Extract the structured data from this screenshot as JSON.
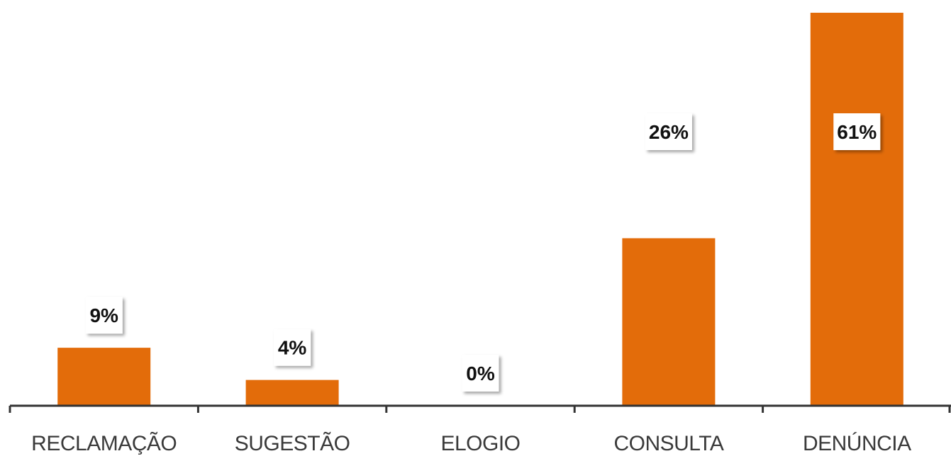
{
  "chart_data": {
    "type": "bar",
    "categories": [
      "RECLAMAÇÃO",
      "SUGESTÃO",
      "ELOGIO",
      "CONSULTA",
      "DENÚNCIA"
    ],
    "values": [
      9,
      4,
      0,
      26,
      61
    ],
    "data_labels": [
      "9%",
      "4%",
      "0%",
      "26%",
      "61%"
    ],
    "ylim": [
      0,
      61
    ],
    "grid": false,
    "title": "",
    "xlabel": "",
    "ylabel": "",
    "bar_color": "#E36C0A",
    "axis_color": "#333333"
  }
}
